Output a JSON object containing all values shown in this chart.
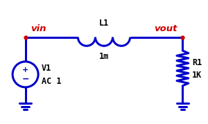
{
  "bg_color": "#ffffff",
  "wire_color": "#0000cc",
  "label_color_red": "#cc0000",
  "label_color_black": "#000000",
  "line_width": 2.2,
  "vin_label": "vin",
  "vout_label": "vout",
  "v1_label": "V1",
  "ac_label": "AC 1",
  "l1_label": "L1",
  "l1_value": "1m",
  "r1_label": "R1",
  "r1_value": "1K",
  "figsize": [
    3.0,
    1.79
  ],
  "dpi": 100,
  "xlim": [
    0,
    10
  ],
  "ylim": [
    0,
    6
  ]
}
